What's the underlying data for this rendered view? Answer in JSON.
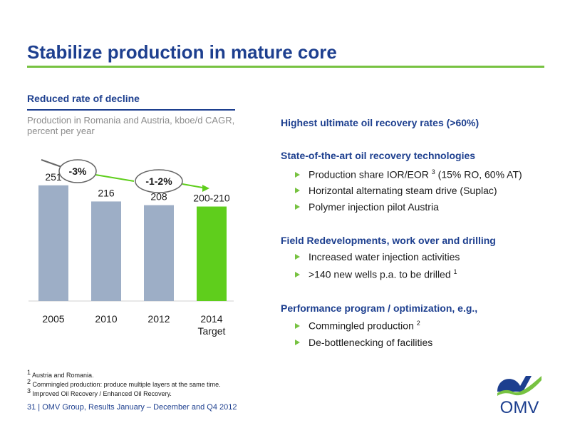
{
  "title": "Stabilize production in mature core",
  "chart_heading": "Reduced rate of decline",
  "chart_subtitle": "Production in Romania and Austria, kboe/d CAGR, percent per year",
  "chart_data": {
    "type": "bar",
    "title": "Production in Romania and Austria, kboe/d CAGR, percent per year",
    "categories": [
      "2005",
      "2010",
      "2012",
      "2014 Target"
    ],
    "values": [
      251,
      216,
      208,
      205
    ],
    "value_labels": [
      "251",
      "216",
      "208",
      "200-210"
    ],
    "ylim": [
      0,
      260
    ],
    "colors": [
      "#9daec6",
      "#9daec6",
      "#9daec6",
      "#5fce1c"
    ],
    "annotations": [
      "-3%",
      "-1-2%"
    ]
  },
  "right": {
    "s1": {
      "heading": "Highest ultimate oil recovery rates (>60%)"
    },
    "s2": {
      "heading": "State-of-the-art oil recovery technologies",
      "b1_pre": "Production share IOR/EOR ",
      "b1_sup": "3",
      "b1_post": " (15% RO, 60% AT)",
      "b2": "Horizontal alternating steam drive (Suplac)",
      "b3": "Polymer injection pilot Austria"
    },
    "s3": {
      "heading": "Field Redevelopments, work over and drilling",
      "b1": "Increased water injection activities",
      "b2_pre": ">140 new wells p.a. to be drilled ",
      "b2_sup": "1"
    },
    "s4": {
      "heading": "Performance program / optimization, e.g.,",
      "b1_pre": "Commingled production ",
      "b1_sup": "2",
      "b2": "De-bottlenecking of facilities"
    }
  },
  "footnotes": {
    "f1_num": "1",
    "f1": " Austria and Romania.",
    "f2_num": "2",
    "f2": " Commingled production: produce multiple layers at the same time.",
    "f3_num": "3",
    "f3": " Improved Oil Recovery / Enhanced Oil Recovery."
  },
  "footer": "31 | OMV Group, Results January – December and Q4 2012",
  "logo_text": "OMV",
  "colors": {
    "brand_blue": "#1d3f8f",
    "accent_green": "#77c241",
    "bar_grey": "#9daec6",
    "bar_green": "#5fce1c"
  }
}
